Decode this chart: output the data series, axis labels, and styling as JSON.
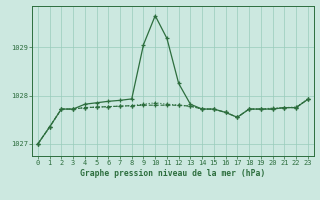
{
  "title": "Graphe pression niveau de la mer (hPa)",
  "background_color": "#cce8e0",
  "grid_color": "#99ccbb",
  "line_color": "#2d6e3e",
  "x_values": [
    0,
    1,
    2,
    3,
    4,
    5,
    6,
    7,
    8,
    9,
    10,
    11,
    12,
    13,
    14,
    15,
    16,
    17,
    18,
    19,
    20,
    21,
    22,
    23
  ],
  "y_main": [
    1027.0,
    1027.35,
    1027.72,
    1027.72,
    1027.82,
    1027.85,
    1027.88,
    1027.9,
    1027.93,
    1029.05,
    1029.65,
    1029.18,
    1028.25,
    1027.82,
    1027.72,
    1027.72,
    1027.65,
    1027.55,
    1027.72,
    1027.72,
    1027.72,
    1027.75,
    1027.75,
    1027.92
  ],
  "y_flat1": [
    1027.0,
    1027.35,
    1027.72,
    1027.72,
    1027.75,
    1027.76,
    1027.77,
    1027.78,
    1027.79,
    1027.8,
    1027.8,
    1027.8,
    1027.8,
    1027.78,
    1027.72,
    1027.72,
    1027.65,
    1027.55,
    1027.72,
    1027.72,
    1027.72,
    1027.75,
    1027.75,
    1027.92
  ],
  "y_flat2": [
    1027.0,
    1027.35,
    1027.72,
    1027.72,
    1027.75,
    1027.76,
    1027.77,
    1027.78,
    1027.79,
    1027.82,
    1027.85,
    1027.82,
    1027.8,
    1027.78,
    1027.72,
    1027.72,
    1027.65,
    1027.55,
    1027.72,
    1027.72,
    1027.74,
    1027.75,
    1027.76,
    1027.92
  ],
  "ylim": [
    1026.75,
    1029.85
  ],
  "yticks": [
    1027,
    1028,
    1029
  ],
  "xlim": [
    -0.5,
    23.5
  ],
  "xticks": [
    0,
    1,
    2,
    3,
    4,
    5,
    6,
    7,
    8,
    9,
    10,
    11,
    12,
    13,
    14,
    15,
    16,
    17,
    18,
    19,
    20,
    21,
    22,
    23
  ]
}
